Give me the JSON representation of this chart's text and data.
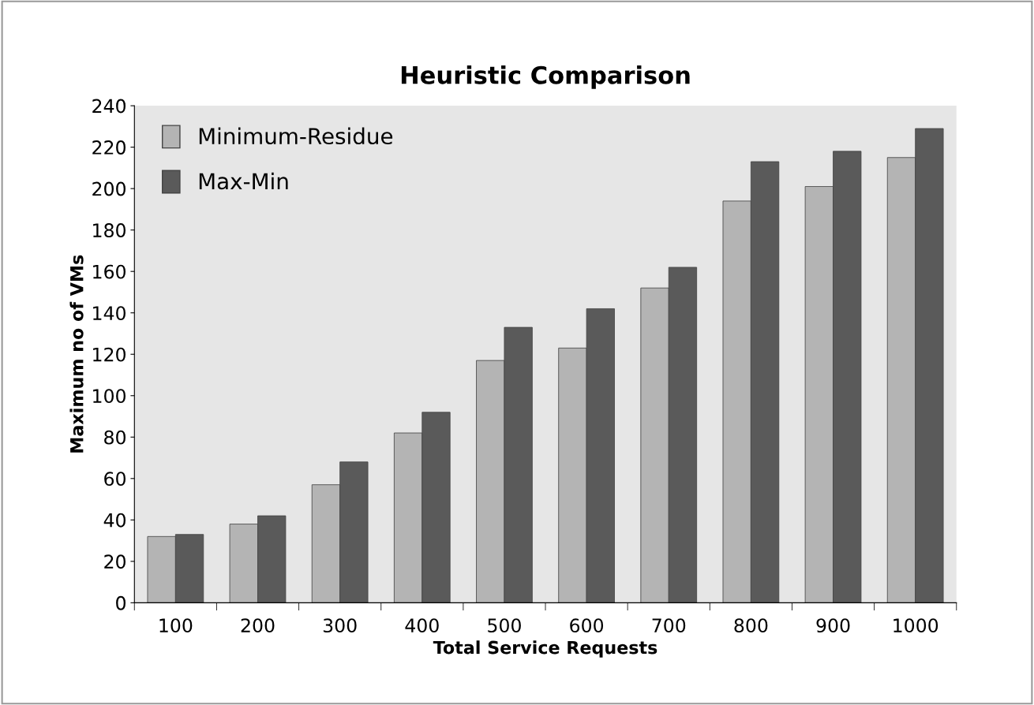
{
  "chart_data": {
    "type": "bar",
    "title": "Heuristic Comparison",
    "xlabel": "Total Service Requests",
    "ylabel": "Maximum no of VMs",
    "categories": [
      "100",
      "200",
      "300",
      "400",
      "500",
      "600",
      "700",
      "800",
      "900",
      "1000"
    ],
    "series": [
      {
        "name": "Minimum-Residue",
        "color": "#b4b4b4",
        "values": [
          32,
          38,
          57,
          82,
          117,
          123,
          152,
          194,
          201,
          215
        ]
      },
      {
        "name": "Max-Min",
        "color": "#5a5a5a",
        "values": [
          33,
          42,
          68,
          92,
          133,
          142,
          162,
          213,
          218,
          229
        ]
      }
    ],
    "ylim": [
      0,
      240
    ],
    "yticks": [
      0,
      20,
      40,
      60,
      80,
      100,
      120,
      140,
      160,
      180,
      200,
      220,
      240
    ],
    "grid": false,
    "legend": "top left"
  }
}
